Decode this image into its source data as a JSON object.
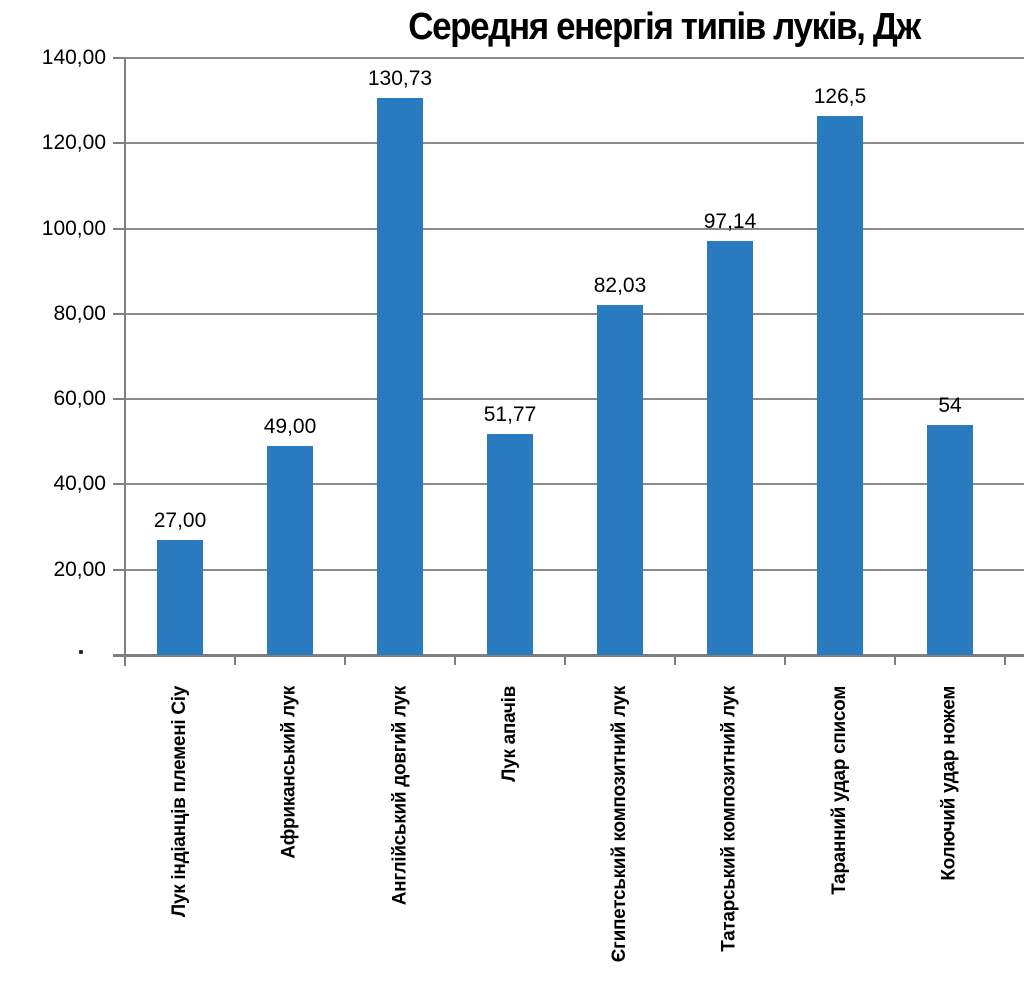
{
  "chart_data": {
    "type": "bar",
    "title": "Середня енергія типів луків, Дж",
    "categories": [
      "Лук індіанців племені Сіу",
      "Африканський лук",
      "Англійський довгий лук",
      "Лук апачів",
      "Єгипетський композитний лук",
      "Татарський композитний лук",
      "Таранний удар списом",
      "Колючий удар ножем"
    ],
    "values": [
      27.0,
      49.0,
      130.73,
      51.77,
      82.03,
      97.14,
      126.5,
      54
    ],
    "value_labels": [
      "27,00",
      "49,00",
      "130,73",
      "51,77",
      "82,03",
      "97,14",
      "126,5",
      "54"
    ],
    "ylim": [
      0,
      140
    ],
    "y_tick_values": [
      140,
      120,
      100,
      80,
      60,
      40,
      20
    ],
    "y_tick_labels": [
      "140,00",
      "120,00",
      "100,00",
      "80,00",
      "60,00",
      "40,00",
      "20,00"
    ],
    "baseline_tick_label": ".",
    "grid": true,
    "legend": false,
    "colors": {
      "bar": "#2A7ABF",
      "grid": "#8B8B8B",
      "axis": "#7F7F7F",
      "text": "#000000",
      "background": "#FFFFFF"
    }
  }
}
